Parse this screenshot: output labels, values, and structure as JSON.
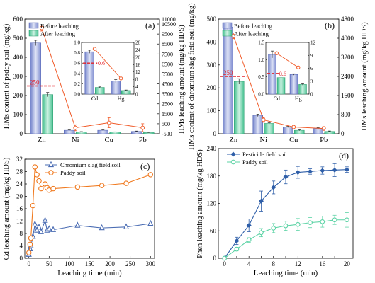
{
  "colors": {
    "bar_before": "#9aa6dc",
    "bar_after": "#6ccfa8",
    "leach_line": "#f05a28",
    "threshold": "#e4232b",
    "chromium_line": "#4a6cb3",
    "paddy_line_c": "#f07a20",
    "pesticide_line": "#2e5ea8",
    "paddy_line_d": "#5cd3a5"
  },
  "chart_data": [
    {
      "panel": "(a)",
      "type": "bar",
      "categories": [
        "Zn",
        "Ni",
        "Cu",
        "Pb"
      ],
      "series": [
        {
          "name": "Before leaching",
          "values": [
            475,
            18,
            18,
            12
          ],
          "errors": [
            14,
            2,
            2,
            2
          ]
        },
        {
          "name": "After leaching",
          "values": [
            205,
            10,
            9,
            6
          ],
          "errors": [
            11,
            1,
            1,
            1
          ]
        }
      ],
      "ylabel": "HMs content of paddy soil (mg/kg)",
      "ylim": [
        0,
        600
      ],
      "yticks": [
        "0",
        "100",
        "200",
        "300",
        "400",
        "500",
        "600"
      ],
      "y2label": "HMs leaching amount (mg/kg HDS)",
      "y2lim": [
        -500,
        11000
      ],
      "y2ticks": [
        "-500",
        "500",
        "1500",
        "2500",
        "3500",
        "4500",
        "5500",
        "6500",
        "7500",
        "8500",
        "9500",
        "10500",
        "11000"
      ],
      "leaching_values": [
        10100,
        100,
        600,
        100
      ],
      "leaching_errors": [
        300,
        300,
        500,
        400
      ],
      "threshold_value": 250,
      "threshold_label": "250",
      "inset": {
        "categories": [
          "Cd",
          "Hg"
        ],
        "series": [
          {
            "name": "Before leaching",
            "values": [
              0.82,
              0.25
            ],
            "errors": [
              0.03,
              0.03
            ]
          },
          {
            "name": "After leaching",
            "values": [
              0.13,
              0.07
            ],
            "errors": [
              0.01,
              0.01
            ]
          }
        ],
        "ylim": [
          0,
          1.0
        ],
        "yticks": [
          "0.0",
          "0.2",
          "0.4",
          "0.6",
          "0.8",
          "1.0"
        ],
        "y2lim": [
          0,
          28
        ],
        "y2ticks": [
          "0",
          "4",
          "8",
          "12",
          "16",
          "20",
          "24",
          "28"
        ],
        "leaching_values": [
          24.5,
          8.5
        ],
        "threshold_value": 0.6,
        "threshold_label": "0.6"
      }
    },
    {
      "panel": "(b)",
      "type": "bar",
      "categories": [
        "Zn",
        "Ni",
        "Cu",
        "Pb"
      ],
      "series": [
        {
          "name": "Before leaching",
          "values": [
            465,
            80,
            30,
            22
          ],
          "errors": [
            12,
            5,
            3,
            5
          ]
        },
        {
          "name": "After leaching",
          "values": [
            228,
            45,
            15,
            10
          ],
          "errors": [
            12,
            3,
            2,
            2
          ]
        }
      ],
      "ylabel": "HMs content of chromium slag field soil (mg/kg)",
      "ylim": [
        0,
        500
      ],
      "yticks": [
        "0",
        "100",
        "200",
        "300",
        "400",
        "500"
      ],
      "y2label": "HMs leaching amount (mg/kg HDS)",
      "y2lim": [
        0,
        4800
      ],
      "y2ticks": [
        "0",
        "800",
        "1600",
        "2400",
        "3200",
        "4000",
        "4800"
      ],
      "leaching_values": [
        4100,
        580,
        280,
        220
      ],
      "leaching_errors": [
        120,
        100,
        80,
        80
      ],
      "threshold_value": 250,
      "threshold_label": "250",
      "inset": {
        "categories": [
          "Cd",
          "Hg"
        ],
        "series": [
          {
            "name": "Before leaching",
            "values": [
              1.15,
              0.57
            ],
            "errors": [
              0.1,
              0.02
            ]
          },
          {
            "name": "After leaching",
            "values": [
              0.48,
              0.28
            ],
            "errors": [
              0.05,
              0.02
            ]
          }
        ],
        "ylim": [
          0,
          1.5
        ],
        "yticks": [
          "0.0",
          "0.5",
          "1.0",
          "1.5"
        ],
        "y2lim": [
          0,
          12
        ],
        "y2ticks": [
          "0",
          "3",
          "6",
          "9",
          "12"
        ],
        "leaching_values": [
          9.5,
          6.2
        ],
        "threshold_value": 0.6,
        "threshold_label": "0.6"
      }
    },
    {
      "panel": "(c)",
      "type": "line",
      "xlabel": "Leaching time (min)",
      "ylabel": "Cd leaching amount (mg/kg HDS)",
      "xlim": [
        -10,
        310
      ],
      "xticks": [
        0,
        50,
        100,
        150,
        200,
        250,
        300
      ],
      "ylim": [
        0,
        32
      ],
      "yticks": [
        0,
        4,
        8,
        12,
        16,
        20,
        24,
        28,
        32
      ],
      "series": [
        {
          "name": "Chromium slag field soil",
          "marker": "triangle",
          "x": [
            0,
            3,
            5,
            10,
            15,
            20,
            25,
            30,
            40,
            45,
            50,
            60,
            120,
            180,
            240,
            300
          ],
          "y": [
            1.2,
            3.0,
            4.0,
            7.0,
            11.0,
            9.0,
            10.0,
            8.5,
            12.2,
            9.0,
            9.5,
            9.2,
            10.6,
            9.8,
            10.1,
            11.2
          ]
        },
        {
          "name": "Paddy soil",
          "marker": "circle",
          "x": [
            0,
            3,
            5,
            10,
            15,
            20,
            25,
            30,
            40,
            45,
            50,
            60,
            120,
            180,
            240,
            300
          ],
          "y": [
            1.8,
            4.5,
            6.5,
            17.0,
            29.5,
            27.0,
            25.0,
            22.5,
            24.0,
            22.8,
            22.0,
            22.5,
            23.0,
            23.5,
            24.2,
            27.0
          ]
        }
      ]
    },
    {
      "panel": "(d)",
      "type": "line",
      "xlabel": "Leaching time (min)",
      "ylabel": "Phen leaching amount (mg/kg HDS)",
      "xlim": [
        -1,
        21
      ],
      "xticks": [
        0,
        2,
        4,
        6,
        8,
        10,
        12,
        14,
        16,
        18,
        20
      ],
      "xtick_labels": [
        "0",
        "4",
        "8",
        "12",
        "16",
        "20"
      ],
      "ylim": [
        0,
        240
      ],
      "yticks": [
        0,
        60,
        120,
        180,
        240
      ],
      "series": [
        {
          "name": "Pesticide field soil",
          "marker": "diamond",
          "x": [
            0,
            2,
            4,
            6,
            8,
            10,
            12,
            14,
            16,
            18,
            20
          ],
          "y": [
            0,
            38,
            72,
            125,
            155,
            178,
            188,
            190,
            192,
            193,
            194
          ],
          "errors": [
            0,
            8,
            14,
            22,
            14,
            15,
            13,
            6,
            8,
            14,
            6
          ]
        },
        {
          "name": "Paddy soil",
          "marker": "circle",
          "x": [
            0,
            2,
            4,
            6,
            8,
            10,
            12,
            14,
            16,
            18,
            20
          ],
          "y": [
            0,
            20,
            40,
            56,
            66,
            71,
            74,
            78,
            80,
            84,
            84
          ],
          "errors": [
            0,
            4,
            5,
            9,
            10,
            10,
            13,
            11,
            12,
            10,
            16
          ]
        }
      ]
    }
  ]
}
